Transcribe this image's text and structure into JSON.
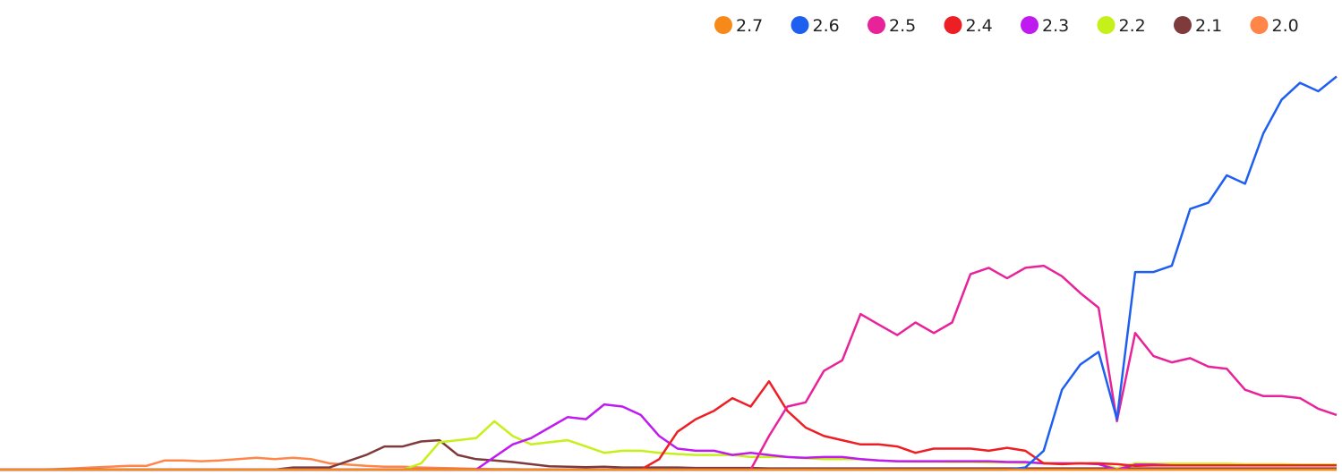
{
  "chart_data": {
    "type": "line",
    "title": "",
    "xlabel": "",
    "ylabel": "",
    "grid": false,
    "legend_position": "top-right",
    "x": [
      0,
      1,
      2,
      3,
      4,
      5,
      6,
      7,
      8,
      9,
      10,
      11,
      12,
      13,
      14,
      15,
      16,
      17,
      18,
      19,
      20,
      21,
      22,
      23,
      24,
      25,
      26,
      27,
      28,
      29,
      30,
      31,
      32,
      33,
      34,
      35,
      36,
      37,
      38,
      39,
      40,
      41,
      42,
      43,
      44,
      45,
      46,
      47,
      48,
      49,
      50,
      51,
      52,
      53,
      54,
      55,
      56,
      57,
      58,
      59,
      60,
      61,
      62,
      63,
      64,
      65,
      66,
      67,
      68,
      69,
      70,
      71,
      72,
      73
    ],
    "ylim": [
      0,
      100
    ],
    "series": [
      {
        "name": "2.7",
        "color": "#f5891a",
        "values": [
          0,
          0,
          0,
          0,
          0,
          0,
          0,
          0,
          0,
          0,
          0,
          0,
          0,
          0,
          0,
          0,
          0,
          0,
          0,
          0,
          0,
          0,
          0,
          0,
          0,
          0,
          0,
          0,
          0,
          0,
          0,
          0,
          0,
          0,
          0,
          0,
          0,
          0,
          0,
          0,
          0,
          0,
          0,
          0,
          0,
          0,
          0,
          0,
          0,
          0,
          0,
          0,
          0,
          0,
          0,
          0,
          0,
          0,
          0,
          0,
          0,
          0,
          0,
          0,
          0,
          0,
          0,
          0,
          0,
          0,
          0,
          0,
          0,
          0
        ]
      },
      {
        "name": "2.6",
        "color": "#1e5ff0",
        "values": [
          0,
          0,
          0,
          0,
          0,
          0,
          0,
          0,
          0,
          0,
          0,
          0,
          0,
          0,
          0,
          0,
          0,
          0,
          0,
          0,
          0,
          0,
          0,
          0,
          0,
          0,
          0,
          0,
          0,
          0,
          0,
          0,
          0,
          0,
          0,
          0,
          0,
          0,
          0,
          0,
          0,
          0,
          0,
          0,
          0,
          0,
          0,
          0,
          0,
          0,
          0,
          0,
          0,
          0,
          0,
          0,
          0.5,
          4.5,
          19,
          25,
          28,
          12,
          47,
          47,
          48.5,
          62,
          63.5,
          70,
          68,
          80,
          88,
          92,
          90,
          93.5
        ]
      },
      {
        "name": "2.5",
        "color": "#e8239a",
        "values": [
          0,
          0,
          0,
          0,
          0,
          0,
          0,
          0,
          0,
          0,
          0,
          0,
          0,
          0,
          0,
          0,
          0,
          0,
          0,
          0,
          0,
          0,
          0,
          0,
          0,
          0,
          0,
          0,
          0,
          0,
          0,
          0,
          0,
          0,
          0,
          0,
          0,
          0,
          0,
          0,
          0,
          0,
          8,
          15,
          16,
          23.5,
          26,
          37,
          34.5,
          32,
          35,
          32.5,
          35,
          46.5,
          48,
          45.5,
          48,
          48.5,
          46,
          42,
          38.5,
          11.5,
          32.5,
          27,
          25.5,
          26.5,
          24.5,
          24,
          19,
          17.5,
          17.5,
          17,
          14.5,
          13
        ]
      },
      {
        "name": "2.4",
        "color": "#ee1f24",
        "values": [
          0,
          0,
          0,
          0,
          0,
          0,
          0,
          0,
          0,
          0,
          0,
          0,
          0,
          0,
          0,
          0,
          0,
          0,
          0,
          0,
          0,
          0,
          0,
          0,
          0,
          0,
          0,
          0,
          0,
          0,
          0,
          0,
          0,
          0,
          0,
          0,
          2.5,
          9,
          12,
          14,
          17,
          15,
          21,
          14,
          10,
          8,
          7,
          6,
          6,
          5.5,
          4,
          5,
          5,
          5,
          4.5,
          5.2,
          4.5,
          1.5,
          1.3,
          1.5,
          1.5,
          1.3,
          0.9,
          1,
          1,
          1,
          1,
          1,
          1,
          1,
          1,
          1,
          1,
          1
        ]
      },
      {
        "name": "2.3",
        "color": "#bf1af0",
        "values": [
          0,
          0,
          0,
          0,
          0,
          0,
          0,
          0,
          0,
          0,
          0,
          0,
          0,
          0,
          0,
          0,
          0,
          0,
          0,
          0,
          0,
          0,
          0,
          0,
          0,
          0,
          0,
          3,
          6,
          7.5,
          10,
          12.5,
          12,
          15.5,
          15,
          13,
          8,
          5,
          4.5,
          4.5,
          3.5,
          4,
          3.5,
          3,
          2.8,
          3,
          3,
          2.5,
          2.2,
          2,
          2,
          2,
          2,
          2,
          2,
          1.8,
          1.8,
          1.5,
          1.5,
          1.5,
          1.3,
          0,
          1.2,
          1.2,
          1,
          1,
          1,
          1,
          1,
          1,
          1,
          1,
          1,
          1
        ]
      },
      {
        "name": "2.2",
        "color": "#c6f01a",
        "values": [
          0,
          0,
          0,
          0,
          0,
          0,
          0,
          0,
          0,
          0,
          0,
          0,
          0,
          0,
          0,
          0,
          0,
          0,
          0,
          0,
          0,
          0,
          0,
          1.5,
          6.5,
          7,
          7.5,
          11.5,
          8,
          6,
          6.5,
          7,
          5.5,
          4,
          4.5,
          4.5,
          4,
          3.7,
          3.5,
          3.5,
          3.5,
          3,
          3,
          3,
          2.7,
          2.5,
          2.5,
          2.5,
          2.2,
          2,
          1.9,
          1.9,
          1.8,
          1.8,
          1.7,
          1.7,
          1.6,
          1.6,
          1.5,
          1.5,
          1.5,
          0.3,
          1.5,
          1.4,
          1.4,
          1.4,
          1.4,
          1.4,
          1.3,
          1.3,
          1.3,
          1.2,
          1.2,
          1.2
        ]
      },
      {
        "name": "2.1",
        "color": "#7f3b3b",
        "values": [
          0,
          0,
          0,
          0,
          0,
          0,
          0,
          0,
          0,
          0,
          0,
          0,
          0,
          0,
          0,
          0,
          0.5,
          0.5,
          0.5,
          2,
          3.5,
          5.5,
          5.5,
          6.7,
          7,
          3.5,
          2.5,
          2.2,
          1.8,
          1.3,
          0.8,
          0.7,
          0.6,
          0.7,
          0.5,
          0.5,
          0.5,
          0.5,
          0.4,
          0.4,
          0.4,
          0.4,
          0.3,
          0.3,
          0.3,
          0.3,
          0.3,
          0.3,
          0.3,
          0.3,
          0.3,
          0.3,
          0.3,
          0.3,
          0.3,
          0.3,
          0.3,
          0.3,
          0.3,
          0.3,
          0.3,
          0.3,
          0.3,
          0.3,
          0.3,
          0.3,
          0.3,
          0.3,
          0.3,
          0.3,
          0.3,
          0.3,
          0.3,
          0.3
        ]
      },
      {
        "name": "2.0",
        "color": "#ff8548",
        "values": [
          0,
          0,
          0,
          0.1,
          0.3,
          0.5,
          0.7,
          0.9,
          0.9,
          2.2,
          2.2,
          2,
          2.2,
          2.5,
          2.8,
          2.5,
          2.8,
          2.5,
          1.5,
          1.2,
          0.9,
          0.7,
          0.7,
          0.5,
          0.4,
          0.3,
          0.2,
          0.1,
          0.1,
          0,
          0,
          0,
          0,
          0,
          0,
          0,
          0,
          0,
          0,
          0,
          0,
          0,
          0,
          0,
          0,
          0,
          0,
          0,
          0,
          0,
          0,
          0,
          0,
          0,
          0,
          0,
          0,
          0,
          0,
          0,
          0,
          0,
          0,
          0,
          0,
          0,
          0,
          0,
          0,
          0,
          0,
          0,
          0,
          0
        ]
      }
    ]
  }
}
